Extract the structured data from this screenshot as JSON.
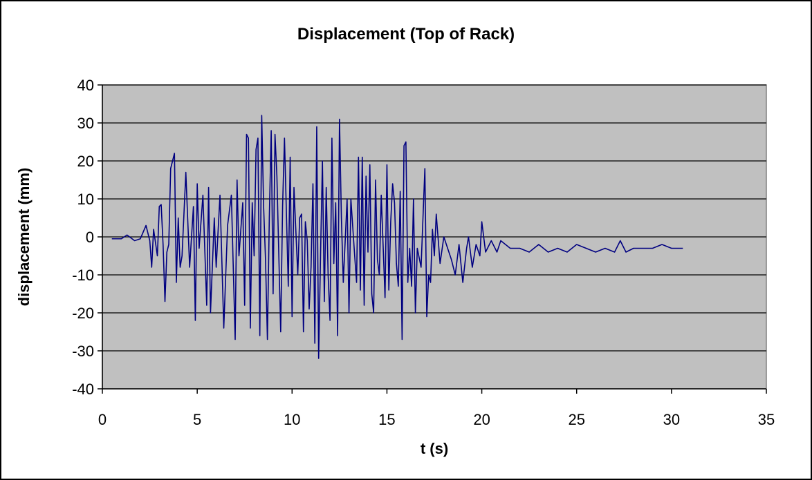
{
  "chart_data": {
    "type": "line",
    "title": "Displacement (Top of Rack)",
    "xlabel": "t (s)",
    "ylabel": "displacement (mm)",
    "xlim": [
      0,
      35
    ],
    "ylim": [
      -40,
      40
    ],
    "xticks": [
      0,
      5,
      10,
      15,
      20,
      25,
      30,
      35
    ],
    "yticks": [
      40,
      30,
      20,
      10,
      0,
      -10,
      -20,
      -30,
      -40
    ],
    "grid": "horizontal major gridlines",
    "legend": "none",
    "colors": {
      "plot_area": "#c0c0c0",
      "series": "#000080",
      "gridline": "#000000"
    },
    "series": [
      {
        "x": [
          0.5,
          1.0,
          1.3,
          1.7,
          2.0,
          2.3,
          2.5,
          2.6,
          2.7,
          2.9,
          3.0,
          3.1,
          3.2,
          3.3,
          3.4,
          3.5,
          3.6,
          3.8,
          3.9,
          4.0,
          4.1,
          4.2,
          4.4,
          4.6,
          4.8,
          4.9,
          5.0,
          5.1,
          5.3,
          5.5,
          5.6,
          5.7,
          5.9,
          6.0,
          6.2,
          6.4,
          6.6,
          6.8,
          7.0,
          7.1,
          7.2,
          7.4,
          7.5,
          7.6,
          7.7,
          7.8,
          7.9,
          8.0,
          8.1,
          8.2,
          8.3,
          8.4,
          8.5,
          8.6,
          8.7,
          8.8,
          8.9,
          9.0,
          9.1,
          9.2,
          9.4,
          9.5,
          9.6,
          9.8,
          9.9,
          10.0,
          10.1,
          10.3,
          10.4,
          10.5,
          10.6,
          10.7,
          10.8,
          10.9,
          11.0,
          11.1,
          11.2,
          11.3,
          11.4,
          11.5,
          11.6,
          11.7,
          11.8,
          11.9,
          12.0,
          12.1,
          12.2,
          12.3,
          12.4,
          12.5,
          12.6,
          12.7,
          12.9,
          13.0,
          13.1,
          13.3,
          13.4,
          13.5,
          13.6,
          13.7,
          13.8,
          13.9,
          14.0,
          14.1,
          14.2,
          14.3,
          14.4,
          14.5,
          14.6,
          14.7,
          14.9,
          15.0,
          15.1,
          15.2,
          15.3,
          15.4,
          15.5,
          15.6,
          15.7,
          15.8,
          15.9,
          16.0,
          16.1,
          16.2,
          16.3,
          16.4,
          16.5,
          16.6,
          16.8,
          17.0,
          17.1,
          17.2,
          17.3,
          17.4,
          17.5,
          17.6,
          17.8,
          18.0,
          18.2,
          18.4,
          18.6,
          18.8,
          19.0,
          19.2,
          19.3,
          19.5,
          19.7,
          19.9,
          20.0,
          20.2,
          20.5,
          20.8,
          21.0,
          21.5,
          22.0,
          22.5,
          23.0,
          23.5,
          24.0,
          24.5,
          25.0,
          25.5,
          26.0,
          26.5,
          27.0,
          27.3,
          27.6,
          28.0,
          28.5,
          29.0,
          29.5,
          30.0,
          30.6
        ],
        "values": [
          -0.5,
          -0.5,
          0.5,
          -1.0,
          -0.5,
          3.0,
          -1.0,
          -8.0,
          2.0,
          -5.0,
          8.0,
          8.5,
          -2.0,
          -17.0,
          -4.0,
          -2.0,
          18.0,
          22.0,
          -12.0,
          5.0,
          -8.0,
          -5.0,
          17.0,
          -8.0,
          8.0,
          -22.0,
          14.0,
          -3.0,
          11.0,
          -18.0,
          13.0,
          -20.0,
          5.0,
          -8.0,
          11.0,
          -24.0,
          3.0,
          11.0,
          -27.0,
          15.0,
          -5.0,
          9.0,
          -18.0,
          27.0,
          26.0,
          -24.0,
          9.0,
          -5.0,
          23.0,
          26.0,
          -26.0,
          32.0,
          8.0,
          -6.0,
          -27.0,
          5.0,
          28.0,
          -15.0,
          27.0,
          16.0,
          -25.0,
          8.0,
          26.0,
          -13.0,
          21.0,
          -21.0,
          13.0,
          -10.0,
          5.0,
          6.0,
          -25.0,
          4.0,
          -1.0,
          -19.0,
          -8.0,
          14.0,
          -28.0,
          29.0,
          -32.0,
          -5.0,
          20.0,
          -17.0,
          13.0,
          -10.0,
          -22.0,
          26.0,
          -7.0,
          9.0,
          -26.0,
          31.0,
          5.0,
          -12.0,
          10.0,
          -20.0,
          10.0,
          -5.0,
          -12.0,
          21.0,
          -14.0,
          21.0,
          -18.0,
          16.0,
          -4.0,
          19.0,
          -15.0,
          -20.0,
          15.0,
          -6.0,
          -10.0,
          11.0,
          -16.0,
          19.0,
          -14.0,
          4.0,
          14.0,
          9.0,
          -7.0,
          -13.0,
          12.0,
          -27.0,
          24.0,
          25.0,
          -12.0,
          -3.0,
          -13.0,
          10.0,
          -20.0,
          -3.0,
          -8.0,
          18.0,
          -21.0,
          -10.0,
          -12.0,
          2.0,
          -5.0,
          6.0,
          -7.0,
          0.0,
          -3.0,
          -6.0,
          -10.0,
          -2.0,
          -12.0,
          -3.0,
          0.0,
          -8.0,
          -2.0,
          -5.0,
          4.0,
          -4.0,
          -1.0,
          -4.0,
          -1.0,
          -3.0,
          -3.0,
          -4.0,
          -2.0,
          -4.0,
          -3.0,
          -4.0,
          -2.0,
          -3.0,
          -4.0,
          -3.0,
          -4.0,
          -1.0,
          -4.0,
          -3.0,
          -3.0,
          -3.0,
          -2.0,
          -3.0,
          -3.0
        ]
      }
    ]
  }
}
